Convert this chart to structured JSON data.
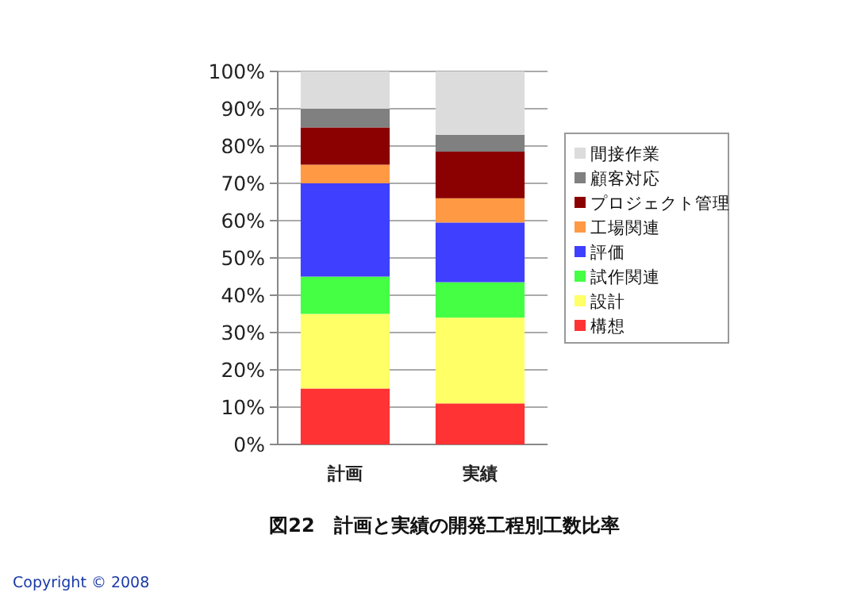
{
  "chart_data": {
    "type": "bar",
    "stacked": true,
    "title": "図22　計画と実績の開発工程別工数比率",
    "categories": [
      "計画",
      "実績"
    ],
    "series": [
      {
        "name": "構想",
        "color": "#ff3333",
        "values": [
          15,
          11
        ]
      },
      {
        "name": "設計",
        "color": "#ffff66",
        "values": [
          20,
          23
        ]
      },
      {
        "name": "試作関連",
        "color": "#44ff44",
        "values": [
          10,
          9.5
        ]
      },
      {
        "name": "評価",
        "color": "#3f3fff",
        "values": [
          25,
          16
        ]
      },
      {
        "name": "工場関連",
        "color": "#ff9944",
        "values": [
          5,
          6.5
        ]
      },
      {
        "name": "プロジェクト管理",
        "color": "#8b0000",
        "values": [
          10,
          12.5
        ]
      },
      {
        "name": "顧客対応",
        "color": "#808080",
        "values": [
          5,
          4.5
        ]
      },
      {
        "name": "間接作業",
        "color": "#dcdcdc",
        "values": [
          10,
          17
        ]
      }
    ],
    "ylim": [
      0,
      100
    ],
    "yticks": [
      {
        "value": 0,
        "label": "0%"
      },
      {
        "value": 10,
        "label": "10%"
      },
      {
        "value": 20,
        "label": "20%"
      },
      {
        "value": 30,
        "label": "30%"
      },
      {
        "value": 40,
        "label": "40%"
      },
      {
        "value": 50,
        "label": "50%"
      },
      {
        "value": 60,
        "label": "60%"
      },
      {
        "value": 70,
        "label": "70%"
      },
      {
        "value": 80,
        "label": "80%"
      },
      {
        "value": 90,
        "label": "90%"
      },
      {
        "value": 100,
        "label": "100%"
      }
    ],
    "grid": "y",
    "legend": "right",
    "annotations": [
      "Copyright © 2008"
    ]
  }
}
